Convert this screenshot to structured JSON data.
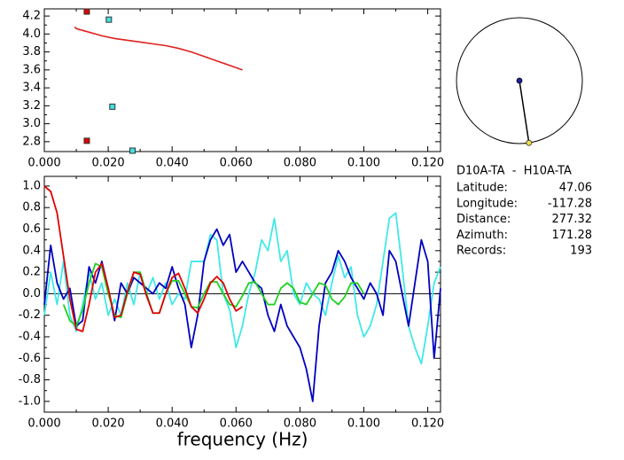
{
  "chart_data": [
    {
      "type": "scatter",
      "xlim": [
        0,
        0.124
      ],
      "ylim": [
        2.69,
        4.28
      ],
      "xticks": [
        {
          "value": 0,
          "label": "0.000"
        },
        {
          "value": 0.02,
          "label": "0.020"
        },
        {
          "value": 0.04,
          "label": "0.040"
        },
        {
          "value": 0.06,
          "label": "0.060"
        },
        {
          "value": 0.08,
          "label": "0.080"
        },
        {
          "value": 0.1,
          "label": "0.100"
        },
        {
          "value": 0.12,
          "label": "0.120"
        }
      ],
      "yticks": [
        2.8,
        {
          "value": 3,
          "label": "3.0"
        },
        3.2,
        3.4,
        3.6,
        3.8,
        {
          "value": 4,
          "label": "4.0"
        },
        4.2
      ],
      "series": [
        {
          "color": "#e00000",
          "marker": "square",
          "x": [
            0.0133,
            0.0133
          ],
          "values": [
            4.25,
            2.81
          ]
        },
        {
          "color": "#40e0e0",
          "marker": "square",
          "x": [
            0.0202,
            0.0213,
            0.0276
          ],
          "values": [
            4.16,
            3.19,
            2.7
          ]
        },
        {
          "color": "#e02020",
          "marker": "none",
          "x": [
            0.0095,
            0.01,
            0.014,
            0.018,
            0.022,
            0.026,
            0.03,
            0.034,
            0.038,
            0.042,
            0.046,
            0.05,
            0.054,
            0.058,
            0.062
          ],
          "values": [
            4.08,
            4.06,
            4.02,
            3.98,
            3.95,
            3.93,
            3.91,
            3.89,
            3.87,
            3.84,
            3.8,
            3.75,
            3.7,
            3.65,
            3.6
          ]
        }
      ]
    },
    {
      "type": "line",
      "xlabel": "frequency (Hz)",
      "xlim": [
        0,
        0.124
      ],
      "ylim": [
        -1.1,
        1.09
      ],
      "xticks": [
        {
          "value": 0,
          "label": "0.000"
        },
        {
          "value": 0.02,
          "label": "0.020"
        },
        {
          "value": 0.04,
          "label": "0.040"
        },
        {
          "value": 0.06,
          "label": "0.060"
        },
        {
          "value": 0.08,
          "label": "0.080"
        },
        {
          "value": 0.1,
          "label": "0.100"
        },
        {
          "value": 0.12,
          "label": "0.120"
        }
      ],
      "yticks": [
        {
          "value": -1,
          "label": "-1.0"
        },
        -0.8,
        -0.6,
        -0.4,
        -0.2,
        {
          "value": 0,
          "label": "0.0"
        },
        0.2,
        0.4,
        0.6,
        0.8,
        {
          "value": 1,
          "label": "1.0"
        }
      ],
      "x": [
        0,
        0.002,
        0.004,
        0.006,
        0.008,
        0.01,
        0.012,
        0.014,
        0.016,
        0.018,
        0.02,
        0.022,
        0.024,
        0.026,
        0.028,
        0.03,
        0.032,
        0.034,
        0.036,
        0.038,
        0.04,
        0.042,
        0.044,
        0.046,
        0.048,
        0.05,
        0.052,
        0.054,
        0.056,
        0.058,
        0.06,
        0.062,
        0.064,
        0.066,
        0.068,
        0.07,
        0.072,
        0.074,
        0.076,
        0.078,
        0.08,
        0.082,
        0.084,
        0.086,
        0.088,
        0.09,
        0.092,
        0.094,
        0.096,
        0.098,
        0.1,
        0.102,
        0.104,
        0.106,
        0.108,
        0.11,
        0.112,
        0.114,
        0.116,
        0.118,
        0.12,
        0.122,
        0.124
      ],
      "series": [
        {
          "color": "#40e8e8",
          "values": [
            -0.2,
            0.2,
            -0.1,
            0.3,
            -0.2,
            -0.35,
            -0.1,
            0.2,
            -0.05,
            0.1,
            -0.2,
            -0.05,
            -0.2,
            0.1,
            -0.1,
            0.2,
            0.0,
            0.15,
            -0.05,
            0.1,
            -0.1,
            0.0,
            -0.05,
            0.3,
            0.3,
            0.3,
            0.55,
            0.5,
            0.0,
            -0.15,
            -0.5,
            -0.3,
            0.0,
            0.2,
            0.5,
            0.4,
            0.7,
            0.3,
            0.4,
            0.0,
            -0.1,
            0.1,
            0.0,
            -0.05,
            -0.2,
            0.1,
            0.35,
            0.15,
            0.25,
            -0.2,
            -0.4,
            -0.3,
            -0.1,
            0.3,
            0.7,
            0.75,
            0.25,
            -0.3,
            -0.5,
            -0.65,
            -0.3,
            0.1,
            0.25
          ]
        },
        {
          "color": "#0000c0",
          "values": [
            -0.1,
            0.45,
            0.1,
            -0.05,
            0.05,
            -0.3,
            -0.25,
            0.25,
            0.1,
            0.3,
            0.05,
            -0.25,
            0.1,
            0.0,
            0.15,
            0.1,
            0.05,
            0.0,
            0.1,
            0.05,
            0.25,
            0.05,
            -0.1,
            -0.5,
            -0.2,
            0.3,
            0.5,
            0.6,
            0.45,
            0.55,
            0.2,
            0.3,
            0.2,
            0.1,
            0.05,
            -0.2,
            -0.35,
            -0.1,
            -0.3,
            -0.4,
            -0.5,
            -0.7,
            -1.0,
            -0.3,
            0.1,
            0.2,
            0.4,
            0.3,
            0.15,
            0.05,
            -0.05,
            0.1,
            0.0,
            -0.2,
            0.4,
            0.3,
            0.0,
            -0.3,
            0.1,
            0.5,
            0.3,
            -0.6,
            0.05
          ]
        },
        {
          "color": "#20d020",
          "values": [
            null,
            null,
            null,
            -0.1,
            -0.25,
            -0.3,
            -0.15,
            0.1,
            0.28,
            0.25,
            0.0,
            -0.2,
            -0.22,
            0.0,
            0.2,
            0.2,
            0.0,
            -0.18,
            -0.18,
            0.0,
            0.12,
            0.12,
            0.0,
            -0.12,
            -0.13,
            0.0,
            0.11,
            0.11,
            0.0,
            -0.1,
            -0.12,
            -0.02,
            0.1,
            0.11,
            0.0,
            -0.1,
            -0.1,
            0.05,
            0.1,
            0.05,
            -0.08,
            -0.1,
            0.0,
            0.1,
            0.08,
            -0.05,
            -0.1,
            -0.03,
            0.1,
            0.1,
            0.0,
            null,
            null,
            null,
            null,
            null,
            null,
            null,
            null,
            null,
            null,
            null,
            null
          ]
        },
        {
          "color": "#e00000",
          "values": [
            1.0,
            0.95,
            0.75,
            0.35,
            -0.05,
            -0.33,
            -0.35,
            -0.1,
            0.2,
            0.28,
            0.05,
            -0.22,
            -0.2,
            0.02,
            0.2,
            0.18,
            -0.02,
            -0.18,
            -0.18,
            0.0,
            0.15,
            0.19,
            0.05,
            -0.12,
            -0.18,
            -0.05,
            0.1,
            0.16,
            0.1,
            -0.05,
            -0.16,
            -0.12,
            null,
            null,
            null,
            null,
            null,
            null,
            null,
            null,
            null,
            null,
            null,
            null,
            null,
            null,
            null,
            null,
            null,
            null,
            null,
            null,
            null,
            null,
            null,
            null,
            null,
            null,
            null,
            null,
            null,
            null,
            null
          ]
        }
      ]
    }
  ],
  "station": {
    "title": "D10A-TA  -  H10A-TA",
    "rows": [
      [
        "Latitude:",
        "47.06"
      ],
      [
        "Longitude:",
        "-117.28"
      ],
      [
        "Distance:",
        "277.32"
      ],
      [
        "Azimuth:",
        "171.28"
      ],
      [
        "Records:",
        "193"
      ]
    ]
  }
}
